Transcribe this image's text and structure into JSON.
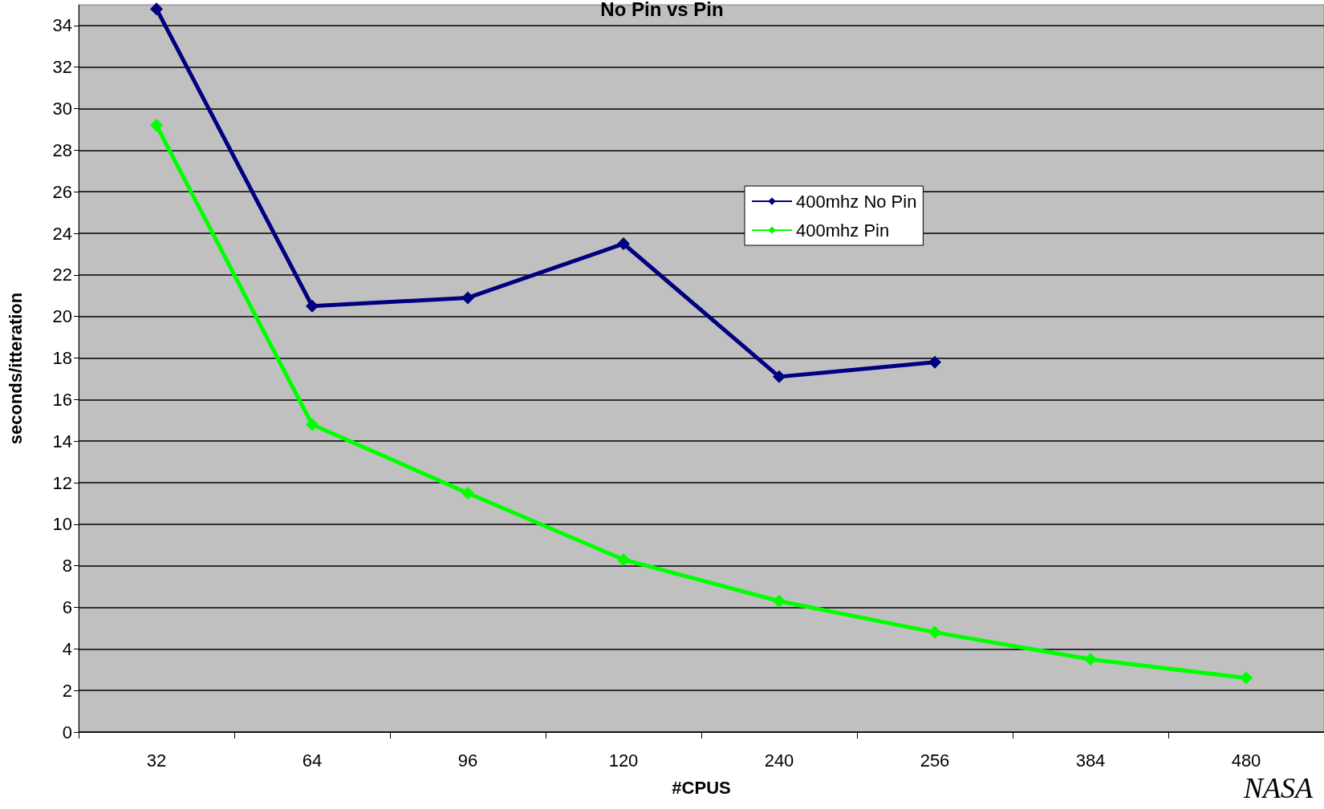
{
  "chart_data": {
    "type": "line",
    "title": "No Pin vs Pin",
    "xlabel": "#CPUS",
    "ylabel": "seconds/itteration",
    "categories": [
      "32",
      "64",
      "96",
      "120",
      "240",
      "256",
      "384",
      "480"
    ],
    "series": [
      {
        "name": "400mhz No Pin",
        "color": "#000080",
        "values": [
          34.8,
          20.5,
          20.9,
          23.5,
          17.1,
          17.8,
          null,
          null
        ]
      },
      {
        "name": "400mhz Pin",
        "color": "#00ff00",
        "values": [
          29.2,
          14.8,
          11.5,
          8.3,
          6.3,
          4.8,
          3.5,
          2.6
        ]
      }
    ],
    "ylim": [
      0,
      35
    ],
    "yticks": [
      0,
      2,
      4,
      6,
      8,
      10,
      12,
      14,
      16,
      18,
      20,
      22,
      24,
      26,
      28,
      30,
      32,
      34
    ],
    "grid": "y",
    "legend": "top right",
    "marker": "diamond",
    "line_style": "solid",
    "annotations": [
      "NASA"
    ]
  }
}
